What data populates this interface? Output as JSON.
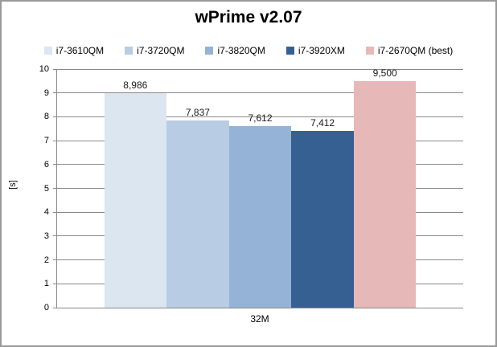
{
  "chart_data": {
    "type": "bar",
    "title": "wPrime v2.07",
    "ylabel": "[s]",
    "xlabel": "",
    "categories": [
      "32M"
    ],
    "series": [
      {
        "name": "i7-3610QM",
        "value": 8.986,
        "label": "8,986",
        "color": "#dce6f1"
      },
      {
        "name": "i7-3720QM",
        "value": 7.837,
        "label": "7,837",
        "color": "#b8cce4"
      },
      {
        "name": "i7-3820QM",
        "value": 7.612,
        "label": "7,612",
        "color": "#95b3d7"
      },
      {
        "name": "i7-3920XM",
        "value": 7.412,
        "label": "7,412",
        "color": "#366092"
      },
      {
        "name": "i7-2670QM (best)",
        "value": 9.5,
        "label": "9,500",
        "color": "#e6b9b8"
      }
    ],
    "ylim": [
      0,
      10
    ],
    "ytick_step": 1,
    "grid": true,
    "legend_position": "top"
  }
}
